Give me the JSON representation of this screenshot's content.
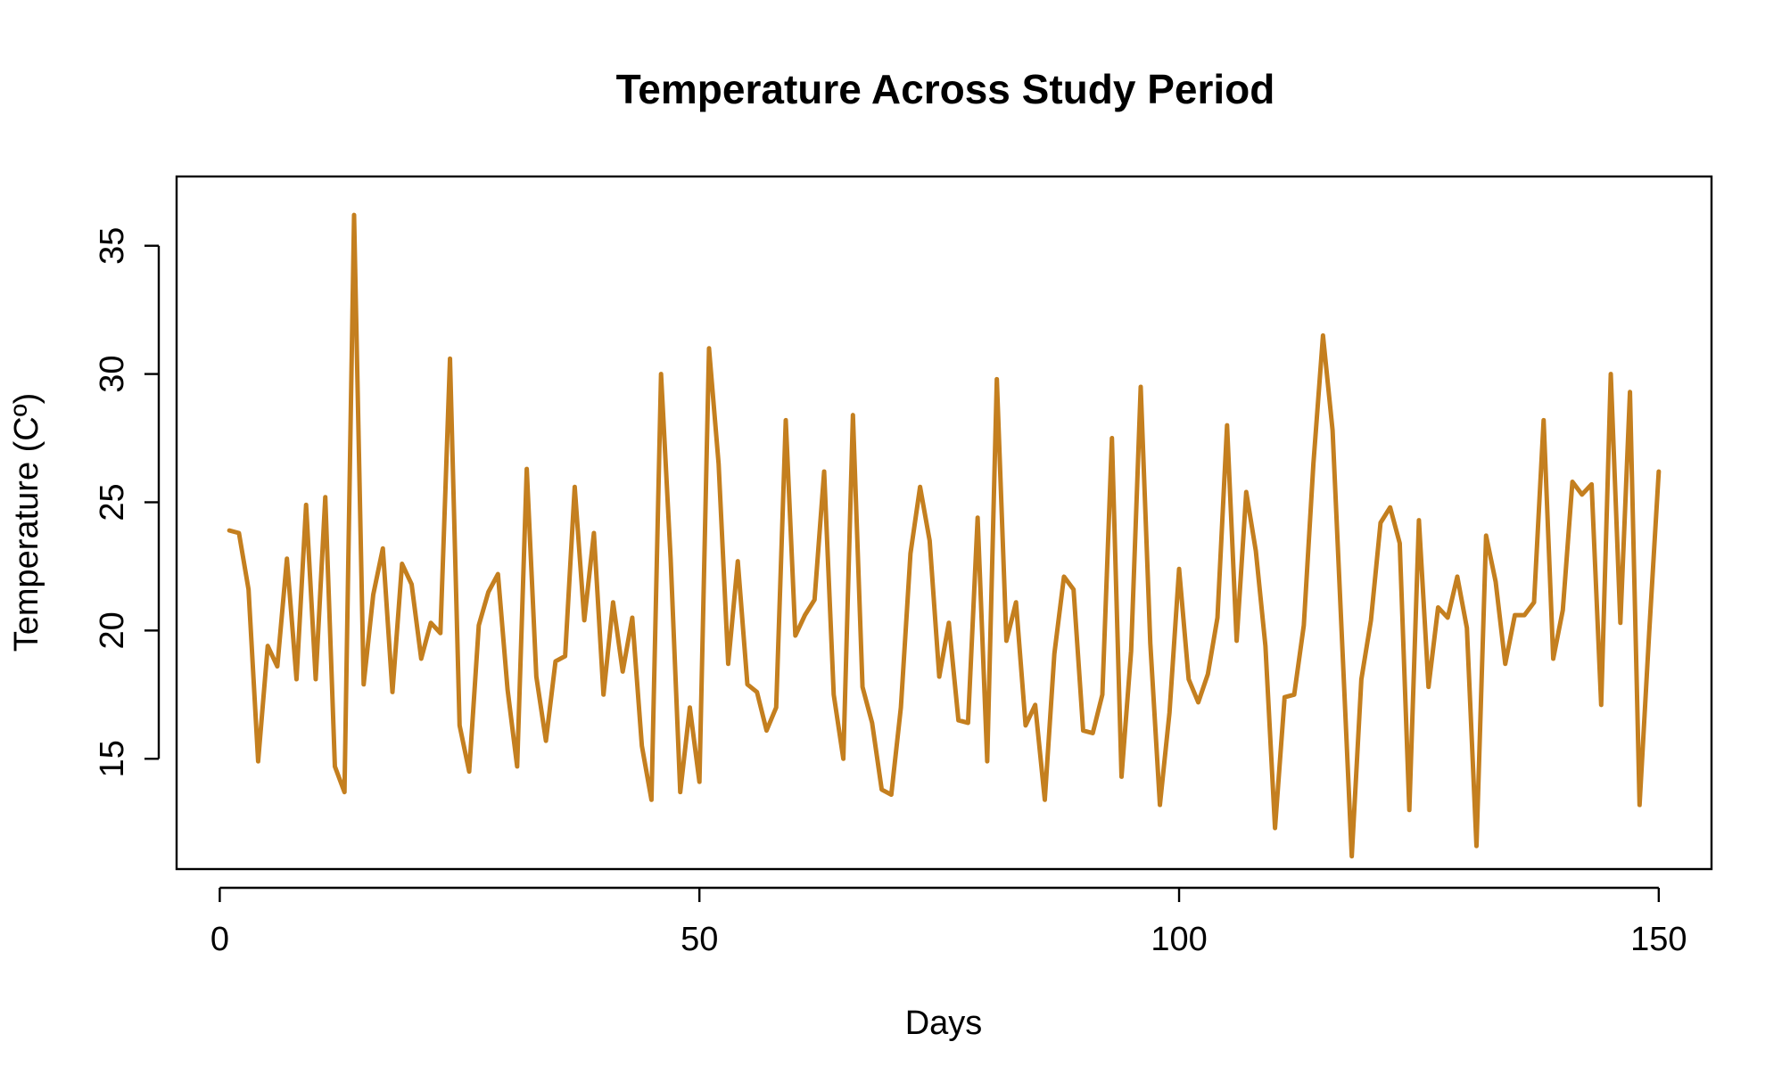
{
  "chart_data": {
    "type": "line",
    "title": "Temperature Across Study Period",
    "xlabel": "Days",
    "ylabel": "Temperature (Cº)",
    "xlim": [
      -4.5,
      155.5
    ],
    "ylim": [
      10.7,
      37.7
    ],
    "x_ticks": [
      0,
      50,
      100,
      150
    ],
    "y_ticks": [
      15,
      20,
      25,
      30,
      35
    ],
    "x_tick_labels": [
      "0",
      "50",
      "100",
      "150"
    ],
    "y_tick_labels": [
      "15",
      "20",
      "25",
      "30",
      "35"
    ],
    "grid": false,
    "legend": "none",
    "series": [
      {
        "color": "#C47F1F",
        "x": [
          1,
          2,
          3,
          4,
          5,
          6,
          7,
          8,
          9,
          10,
          11,
          12,
          13,
          14,
          15,
          16,
          17,
          18,
          19,
          20,
          21,
          22,
          23,
          24,
          25,
          26,
          27,
          28,
          29,
          30,
          31,
          32,
          33,
          34,
          35,
          36,
          37,
          38,
          39,
          40,
          41,
          42,
          43,
          44,
          45,
          46,
          47,
          48,
          49,
          50,
          51,
          52,
          53,
          54,
          55,
          56,
          57,
          58,
          59,
          60,
          61,
          62,
          63,
          64,
          65,
          66,
          67,
          68,
          69,
          70,
          71,
          72,
          73,
          74,
          75,
          76,
          77,
          78,
          79,
          80,
          81,
          82,
          83,
          84,
          85,
          86,
          87,
          88,
          89,
          90,
          91,
          92,
          93,
          94,
          95,
          96,
          97,
          98,
          99,
          100,
          101,
          102,
          103,
          104,
          105,
          106,
          107,
          108,
          109,
          110,
          111,
          112,
          113,
          114,
          115,
          116,
          117,
          118,
          119,
          120,
          121,
          122,
          123,
          124,
          125,
          126,
          127,
          128,
          129,
          130,
          131,
          132,
          133,
          134,
          135,
          136,
          137,
          138,
          139,
          140,
          141,
          142,
          143,
          144,
          145,
          146,
          147,
          148,
          149,
          150
        ],
        "values": [
          23.9,
          23.8,
          21.6,
          14.9,
          19.4,
          18.6,
          22.8,
          18.1,
          24.9,
          18.1,
          25.2,
          14.7,
          13.7,
          36.2,
          17.9,
          21.4,
          23.2,
          17.6,
          22.6,
          21.8,
          18.9,
          20.3,
          19.9,
          30.6,
          16.3,
          14.5,
          20.2,
          21.5,
          22.2,
          17.7,
          14.7,
          26.3,
          18.2,
          15.7,
          18.8,
          19.0,
          25.6,
          20.4,
          23.8,
          17.5,
          21.1,
          18.4,
          20.5,
          15.5,
          13.4,
          30.0,
          22.8,
          13.7,
          17.0,
          14.1,
          31.0,
          26.5,
          18.7,
          22.7,
          17.9,
          17.6,
          16.1,
          17.0,
          28.2,
          19.8,
          20.6,
          21.2,
          26.2,
          17.5,
          15.0,
          28.4,
          17.8,
          16.4,
          13.8,
          13.6,
          17.0,
          23.0,
          25.6,
          23.5,
          18.2,
          20.3,
          16.5,
          16.4,
          24.4,
          14.9,
          29.8,
          19.6,
          21.1,
          16.3,
          17.1,
          13.4,
          19.1,
          22.1,
          21.6,
          16.1,
          16.0,
          17.5,
          27.5,
          14.3,
          19.2,
          29.5,
          19.5,
          13.2,
          16.8,
          22.4,
          18.1,
          17.2,
          18.3,
          20.5,
          28.0,
          19.6,
          25.4,
          23.1,
          19.4,
          12.3,
          17.4,
          17.5,
          20.2,
          26.5,
          31.5,
          27.8,
          19.5,
          11.2,
          18.1,
          20.4,
          24.2,
          24.8,
          23.4,
          13.0,
          24.3,
          17.8,
          20.9,
          20.5,
          22.1,
          20.1,
          11.6,
          23.7,
          21.9,
          18.7,
          20.6,
          20.6,
          21.1,
          28.2,
          18.9,
          20.8,
          25.8,
          25.3,
          25.7,
          17.1,
          30.0,
          20.3,
          29.3,
          13.2,
          19.9,
          26.2
        ]
      }
    ]
  }
}
